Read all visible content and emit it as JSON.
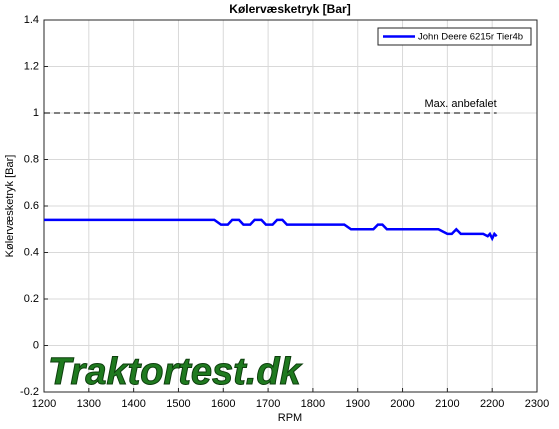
{
  "chart_data": {
    "type": "line",
    "title": "Kølervæsketryk [Bar]",
    "xlabel": "RPM",
    "ylabel": "Kølervæsketryk [Bar]",
    "xlim": [
      1200,
      2300
    ],
    "xticks": [
      1200,
      1300,
      1400,
      1500,
      1600,
      1700,
      1800,
      1900,
      2000,
      2100,
      2200,
      2300
    ],
    "ylim": [
      -0.2,
      1.4
    ],
    "yticks": [
      -0.2,
      0,
      0.2,
      0.4,
      0.6,
      0.8,
      1,
      1.2,
      1.4
    ],
    "grid": true,
    "legend": "top-right",
    "series": [
      {
        "name": "John Deere 6215r Tier4b",
        "color": "#0000ff",
        "x": [
          1200,
          1300,
          1400,
          1500,
          1580,
          1595,
          1610,
          1620,
          1635,
          1645,
          1660,
          1670,
          1685,
          1695,
          1710,
          1720,
          1732,
          1742,
          1800,
          1870,
          1885,
          1900,
          1935,
          1945,
          1955,
          1965,
          2000,
          2080,
          2100,
          2110,
          2120,
          2130,
          2180,
          2190,
          2195,
          2200,
          2205,
          2210
        ],
        "values": [
          0.54,
          0.54,
          0.54,
          0.54,
          0.54,
          0.52,
          0.52,
          0.54,
          0.54,
          0.52,
          0.52,
          0.54,
          0.54,
          0.52,
          0.52,
          0.54,
          0.54,
          0.52,
          0.52,
          0.52,
          0.5,
          0.5,
          0.5,
          0.52,
          0.52,
          0.5,
          0.5,
          0.5,
          0.48,
          0.48,
          0.5,
          0.48,
          0.48,
          0.47,
          0.48,
          0.46,
          0.48,
          0.47
        ]
      }
    ],
    "reference": {
      "value": 1,
      "x": [
        1200,
        2210
      ],
      "label": "Max. anbefalet"
    },
    "watermark": "Traktortest.dk"
  }
}
